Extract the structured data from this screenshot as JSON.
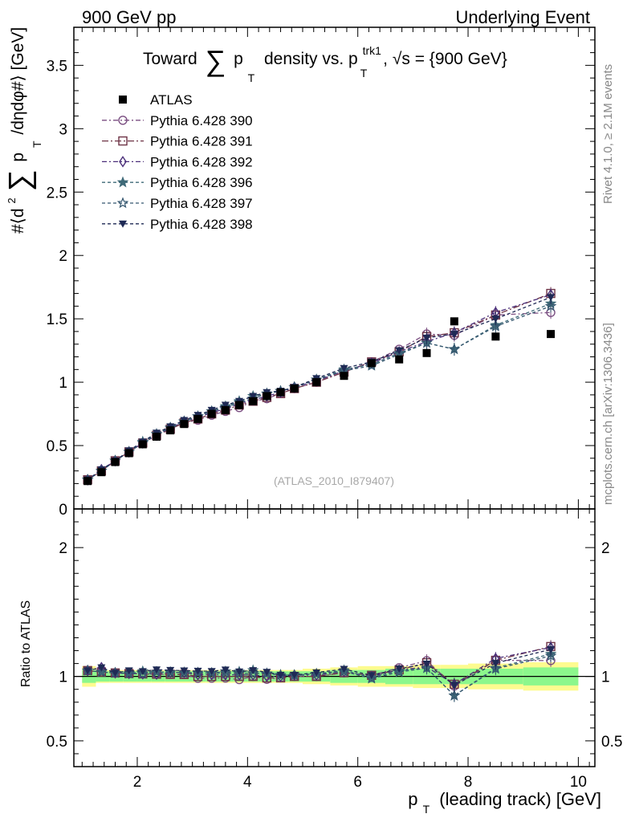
{
  "header": {
    "left": "900 GeV pp",
    "right": "Underlying Event"
  },
  "title": {
    "toward": "Toward",
    "sum": "∑",
    "p": "p",
    "sub_T": "T",
    "density": "density vs. p",
    "sup_trk1": "trk1",
    "sub_T2": "T",
    "sqrt_s": ", √s = {900 GeV}"
  },
  "ylabel": {
    "part1": "#⟨d",
    "sup2": "2",
    "sum": "∑",
    "p": "p",
    "sub_T": "T",
    "part2": "/dηdφ#⟩ [GeV]"
  },
  "ratio_ylabel": "Ratio to ATLAS",
  "xlabel": {
    "p": "p",
    "sub_T": "T",
    "rest": "(leading track) [GeV]"
  },
  "watermark": "(ATLAS_2010_I879407)",
  "side_labels": {
    "rivet": "Rivet 4.1.0, ≥ 2.1M events",
    "mcplots": "mcplots.cern.ch [arXiv:1306.3436]"
  },
  "legend": [
    {
      "label": "ATLAS",
      "color": "#000000",
      "marker": "square-filled",
      "dash": ""
    },
    {
      "label": "Pythia 6.428 390",
      "color": "#7b4f82",
      "marker": "circle-open",
      "dash": "6,3,2,3"
    },
    {
      "label": "Pythia 6.428 391",
      "color": "#6e3446",
      "marker": "square-open",
      "dash": "8,3,2,3"
    },
    {
      "label": "Pythia 6.428 392",
      "color": "#4b2f7a",
      "marker": "diamond-open",
      "dash": "6,3,2,3"
    },
    {
      "label": "Pythia 6.428 396",
      "color": "#3f6a78",
      "marker": "star-filled",
      "dash": "4,3"
    },
    {
      "label": "Pythia 6.428 397",
      "color": "#35576f",
      "marker": "star-open",
      "dash": "4,3"
    },
    {
      "label": "Pythia 6.428 398",
      "color": "#1f2a55",
      "marker": "triangle-down-filled",
      "dash": "4,3"
    }
  ],
  "chart_data": {
    "type": "scatter",
    "title": "Toward ∑ pT density vs. pT trk1, √s = {900 GeV}",
    "xlabel": "pT (leading track) [GeV]",
    "ylabel": "#⟨d2 ∑ pT /dηdφ#⟩ [GeV]",
    "xlim": [
      0.85,
      10.3
    ],
    "ylim": [
      0,
      3.8
    ],
    "ratio_ylim": [
      0.3,
      2.3
    ],
    "x_ticks": [
      2,
      4,
      6,
      8,
      10
    ],
    "y_ticks": [
      0,
      0.5,
      1,
      1.5,
      2,
      2.5,
      3,
      3.5
    ],
    "y_tick_labels": [
      "0",
      "0.5",
      "1",
      "1.5",
      "2",
      "2.5",
      "3",
      "3.5"
    ],
    "ratio_ticks": [
      0.5,
      1,
      2
    ],
    "ratio_tick_labels": [
      "0.5",
      "1",
      "2"
    ],
    "x": [
      1.1,
      1.35,
      1.6,
      1.85,
      2.1,
      2.35,
      2.6,
      2.85,
      3.1,
      3.35,
      3.6,
      3.85,
      4.1,
      4.35,
      4.6,
      4.85,
      5.25,
      5.75,
      6.25,
      6.75,
      7.25,
      7.75,
      8.5,
      9.5
    ],
    "atlas": [
      0.22,
      0.29,
      0.37,
      0.44,
      0.51,
      0.57,
      0.62,
      0.67,
      0.71,
      0.75,
      0.78,
      0.82,
      0.85,
      0.89,
      0.92,
      0.95,
      1.0,
      1.05,
      1.15,
      1.18,
      1.23,
      1.48,
      1.36,
      1.38
    ],
    "band_edges": [
      1.0,
      1.25,
      1.5,
      1.75,
      2.0,
      2.25,
      2.5,
      2.75,
      3.0,
      3.25,
      3.5,
      3.75,
      4.0,
      4.25,
      4.5,
      4.75,
      5.0,
      5.5,
      6.0,
      6.5,
      7.0,
      7.5,
      8.0,
      9.0,
      10.0
    ],
    "band_inner": [
      0.05,
      0.04,
      0.04,
      0.04,
      0.04,
      0.04,
      0.04,
      0.04,
      0.04,
      0.04,
      0.04,
      0.04,
      0.04,
      0.04,
      0.04,
      0.04,
      0.04,
      0.05,
      0.05,
      0.06,
      0.06,
      0.06,
      0.06,
      0.07
    ],
    "band_outer": [
      0.08,
      0.05,
      0.05,
      0.05,
      0.05,
      0.05,
      0.05,
      0.05,
      0.05,
      0.05,
      0.05,
      0.05,
      0.05,
      0.05,
      0.05,
      0.05,
      0.06,
      0.07,
      0.08,
      0.08,
      0.09,
      0.09,
      0.1,
      0.11
    ],
    "series": [
      {
        "name": "Pythia 6.428 390",
        "values": [
          0.23,
          0.3,
          0.38,
          0.45,
          0.52,
          0.58,
          0.63,
          0.68,
          0.7,
          0.74,
          0.77,
          0.8,
          0.85,
          0.87,
          0.91,
          0.95,
          1.0,
          1.08,
          1.16,
          1.26,
          1.38,
          1.37,
          1.53,
          1.55
        ]
      },
      {
        "name": "Pythia 6.428 391",
        "values": [
          0.23,
          0.3,
          0.38,
          0.45,
          0.52,
          0.58,
          0.63,
          0.68,
          0.71,
          0.75,
          0.78,
          0.82,
          0.85,
          0.88,
          0.91,
          0.95,
          1.0,
          1.08,
          1.16,
          1.24,
          1.36,
          1.39,
          1.53,
          1.7
        ]
      },
      {
        "name": "Pythia 6.428 392",
        "values": [
          0.23,
          0.31,
          0.38,
          0.45,
          0.52,
          0.58,
          0.64,
          0.69,
          0.72,
          0.76,
          0.79,
          0.83,
          0.86,
          0.89,
          0.92,
          0.96,
          1.01,
          1.09,
          1.15,
          1.24,
          1.32,
          1.39,
          1.55,
          1.69
        ]
      },
      {
        "name": "Pythia 6.428 396",
        "values": [
          0.23,
          0.3,
          0.38,
          0.45,
          0.53,
          0.59,
          0.64,
          0.69,
          0.73,
          0.77,
          0.81,
          0.85,
          0.89,
          0.91,
          0.93,
          0.96,
          1.02,
          1.1,
          1.14,
          1.23,
          1.31,
          1.26,
          1.45,
          1.62
        ]
      },
      {
        "name": "Pythia 6.428 397",
        "values": [
          0.23,
          0.3,
          0.38,
          0.45,
          0.52,
          0.59,
          0.64,
          0.69,
          0.73,
          0.77,
          0.8,
          0.84,
          0.87,
          0.91,
          0.93,
          0.96,
          1.02,
          1.09,
          1.13,
          1.22,
          1.31,
          1.26,
          1.44,
          1.6
        ]
      },
      {
        "name": "Pythia 6.428 398",
        "values": [
          0.23,
          0.31,
          0.38,
          0.46,
          0.53,
          0.6,
          0.65,
          0.7,
          0.74,
          0.78,
          0.82,
          0.85,
          0.89,
          0.92,
          0.93,
          0.96,
          1.03,
          1.11,
          1.16,
          1.25,
          1.35,
          1.38,
          1.5,
          1.67
        ]
      }
    ]
  }
}
